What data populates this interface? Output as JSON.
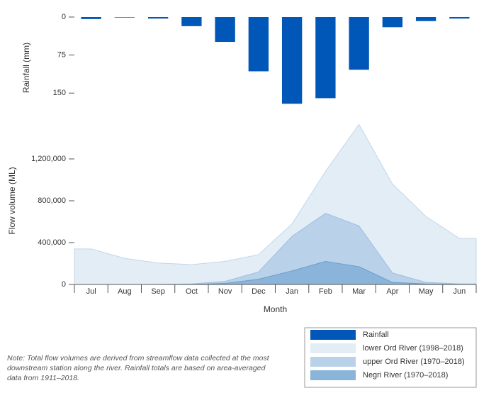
{
  "chart_data": [
    {
      "type": "bar",
      "ylabel": "Rainfall (mm)",
      "inverted": true,
      "ylim": [
        0,
        200
      ],
      "yticks": [
        0,
        75,
        150
      ],
      "series": [
        {
          "name": "Rainfall",
          "color": "#0057b8",
          "values": [
            4,
            1,
            3,
            18,
            49,
            107,
            171,
            160,
            104,
            20,
            8,
            3
          ]
        }
      ]
    },
    {
      "type": "area",
      "xlabel": "Month",
      "ylabel": "Flow volume (ML)",
      "categories": [
        "Jul",
        "Aug",
        "Sep",
        "Oct",
        "Nov",
        "Dec",
        "Jan",
        "Feb",
        "Mar",
        "Apr",
        "May",
        "Jun"
      ],
      "ylim": [
        0,
        1600000
      ],
      "yticks": [
        0,
        {
          "value": 400000,
          "label": "400,000"
        },
        {
          "value": 800000,
          "label": "800,000"
        },
        {
          "value": 1200000,
          "label": "1,200,000"
        }
      ],
      "series": [
        {
          "name": "lower Ord River (1998–2018)",
          "color": "#e3edf6",
          "stroke": "#c3d7ea",
          "values": [
            340000,
            250000,
            205000,
            190000,
            220000,
            285000,
            580000,
            1080000,
            1530000,
            960000,
            650000,
            440000
          ]
        },
        {
          "name": "upper Ord River (1970–2018)",
          "color": "#b9d1e9",
          "stroke": "#9dbfe0",
          "values": [
            0,
            0,
            0,
            5000,
            30000,
            120000,
            460000,
            680000,
            560000,
            110000,
            20000,
            5000
          ]
        },
        {
          "name": "Negri River (1970–2018)",
          "color": "#8ab4d9",
          "stroke": "#6a9fce",
          "values": [
            0,
            0,
            0,
            0,
            10000,
            50000,
            130000,
            220000,
            170000,
            20000,
            5000,
            0
          ]
        }
      ]
    }
  ],
  "note": "Note: Total flow volumes are derived from streamflow data collected at the most downstream station along the river. Rainfall totals are based on area-averaged data from 1911–2018."
}
